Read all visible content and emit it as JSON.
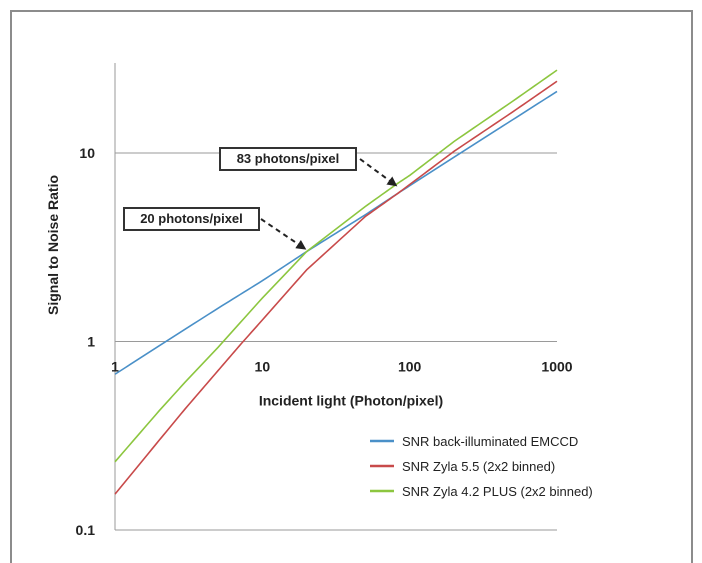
{
  "chart_data": {
    "type": "line",
    "xscale": "log",
    "yscale": "log",
    "xlim": [
      1,
      1000
    ],
    "ylim": [
      0.1,
      30
    ],
    "xlabel": "Incident light (Photon/pixel)",
    "ylabel": "Signal to Noise Ratio",
    "x_ticks": [
      "1",
      "10",
      "100",
      "1000"
    ],
    "y_ticks": [
      "0.1",
      "1",
      "10"
    ],
    "grid": "horizontal",
    "legend": "bottom-right",
    "series": [
      {
        "name": "SNR back-illuminated EMCCD",
        "color": "#4a90c8",
        "x": [
          1,
          2,
          5,
          10,
          20,
          50,
          83,
          100,
          200,
          500,
          1000
        ],
        "y": [
          0.67,
          0.95,
          1.5,
          2.1,
          3.0,
          4.7,
          6.1,
          6.7,
          9.5,
          15.0,
          21.2
        ]
      },
      {
        "name": "SNR Zyla 5.5 (2x2 binned)",
        "color": "#c84a4a",
        "x": [
          1,
          2,
          3,
          5,
          7,
          10,
          20,
          50,
          83,
          100,
          200,
          500,
          1000
        ],
        "y": [
          0.155,
          0.3,
          0.44,
          0.7,
          0.95,
          1.3,
          2.4,
          4.6,
          6.1,
          6.8,
          10.2,
          16.5,
          24.0
        ]
      },
      {
        "name": "SNR Zyla 4.2 PLUS (2x2 binned)",
        "color": "#8cc63f",
        "x": [
          1,
          2,
          3,
          5,
          10,
          20,
          50,
          83,
          100,
          200,
          500,
          1000
        ],
        "y": [
          0.23,
          0.43,
          0.61,
          0.93,
          1.7,
          3.0,
          5.2,
          6.9,
          7.6,
          11.5,
          18.8,
          27.5
        ]
      }
    ],
    "annotations": [
      {
        "text": "20 photons/pixel",
        "x": 20,
        "y": 3.0
      },
      {
        "text": "83 photons/pixel",
        "x": 83,
        "y": 6.5
      }
    ]
  }
}
